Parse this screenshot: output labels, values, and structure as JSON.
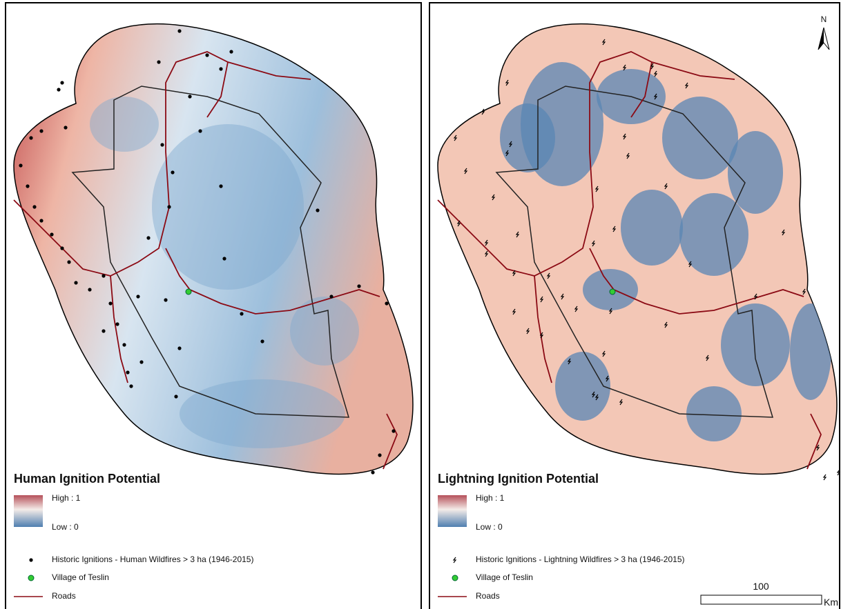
{
  "panels": [
    {
      "title": "Human Ignition Potential",
      "high": "High : 1",
      "low": "Low : 0",
      "ignitions": "Historic Ignitions - Human Wildfires > 3 ha (1946-2015)",
      "village": "Village of Teslin",
      "roads": "Roads"
    },
    {
      "title": "Lightning Ignition Potential",
      "high": "High : 1",
      "low": "Low : 0",
      "ignitions": "Historic Ignitions - Lightning Wildfires > 3 ha (1946-2015)",
      "village": "Village of Teslin",
      "roads": "Roads"
    }
  ],
  "north": "N",
  "scale": {
    "value": 100,
    "unit": "Km"
  }
}
